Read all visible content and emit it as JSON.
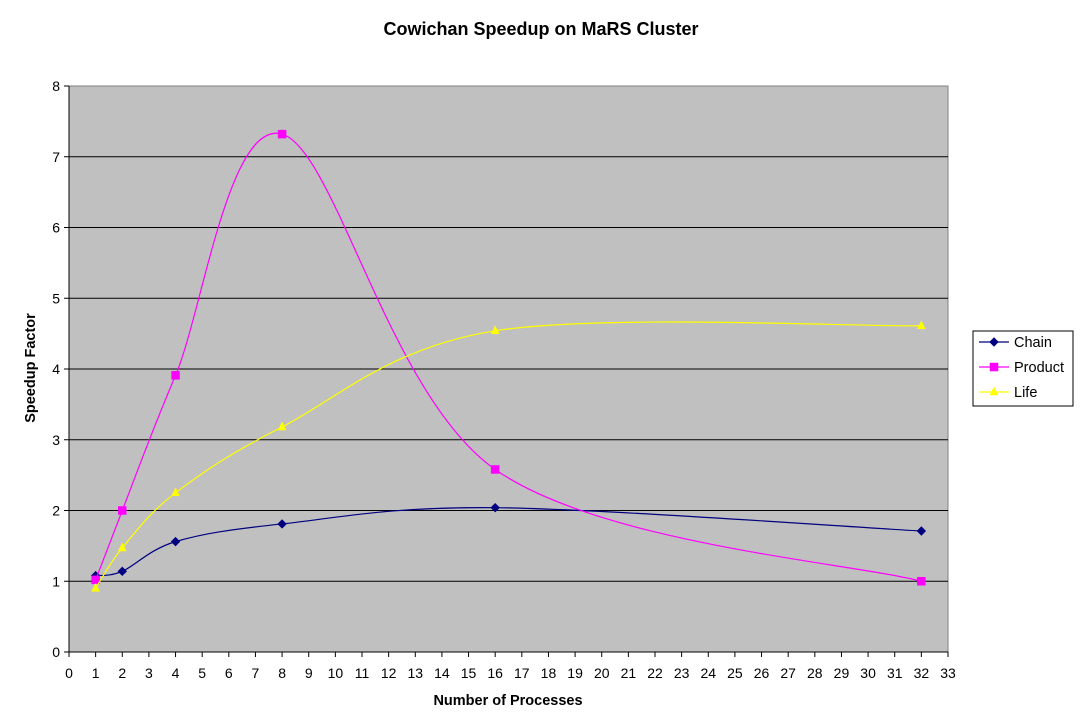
{
  "chart_data": {
    "type": "line",
    "title": "Cowichan Speedup on MaRS Cluster",
    "xlabel": "Number of Processes",
    "ylabel": "Speedup Factor",
    "xlim": [
      0,
      33
    ],
    "ylim": [
      0,
      8
    ],
    "x_ticks": [
      "0",
      "1",
      "2",
      "3",
      "4",
      "5",
      "6",
      "7",
      "8",
      "9",
      "10",
      "11",
      "12",
      "13",
      "14",
      "15",
      "16",
      "17",
      "18",
      "19",
      "20",
      "21",
      "22",
      "23",
      "24",
      "25",
      "26",
      "27",
      "28",
      "29",
      "30",
      "31",
      "32",
      "33"
    ],
    "y_ticks": [
      "0",
      "1",
      "2",
      "3",
      "4",
      "5",
      "6",
      "7",
      "8"
    ],
    "grid": "horizontal",
    "legend_position": "right",
    "plot_background": "#c0c0c0",
    "series": [
      {
        "name": "Chain",
        "color": "#000080",
        "marker": "diamond",
        "x": [
          1,
          2,
          4,
          8,
          16,
          32
        ],
        "y": [
          1.08,
          1.14,
          1.56,
          1.81,
          2.04,
          1.71
        ]
      },
      {
        "name": "Product",
        "color": "#ff00ff",
        "marker": "square",
        "x": [
          1,
          2,
          4,
          8,
          16,
          32
        ],
        "y": [
          1.02,
          2.0,
          3.91,
          7.32,
          2.58,
          1.0
        ]
      },
      {
        "name": "Life",
        "color": "#ffff00",
        "marker": "triangle",
        "x": [
          1,
          2,
          4,
          8,
          16,
          32
        ],
        "y": [
          0.9,
          1.47,
          2.25,
          3.18,
          4.54,
          4.61
        ]
      }
    ]
  }
}
